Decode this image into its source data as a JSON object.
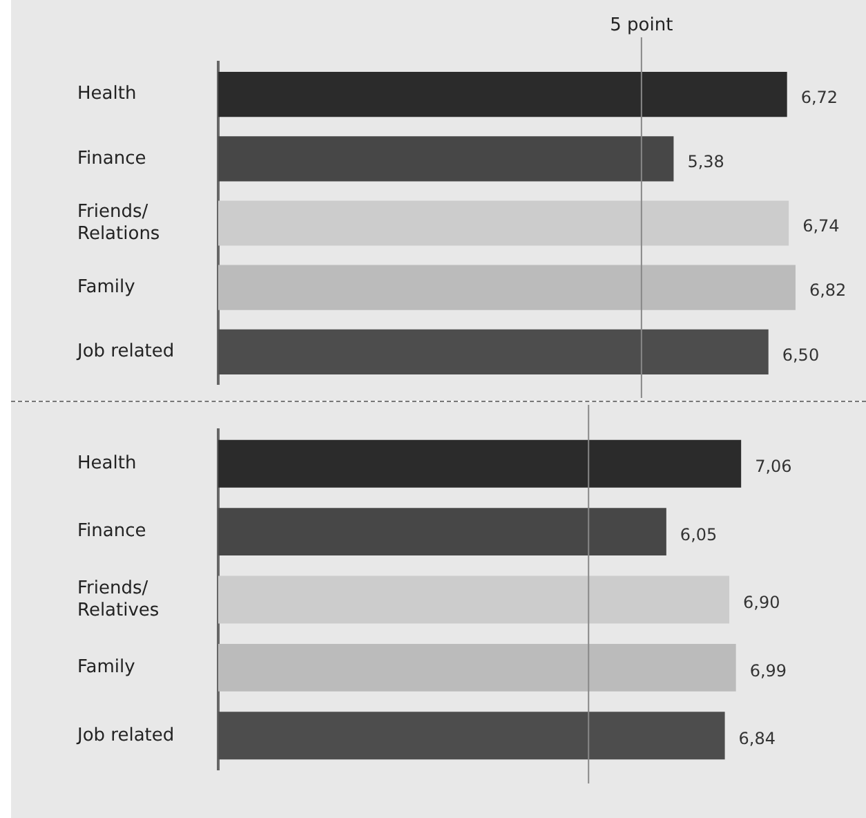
{
  "chart_data": [
    {
      "type": "bar",
      "orientation": "horizontal",
      "categories": [
        "Health",
        "Finance",
        "Friends/ Relations",
        "Family",
        "Job related"
      ],
      "values": [
        6.72,
        5.38,
        6.74,
        6.82,
        6.5
      ],
      "colors": [
        "#2b2b2b",
        "#474747",
        "#cccccc",
        "#bbbbbb",
        "#4d4d4d"
      ],
      "value_labels": [
        "6,72",
        "5,38",
        "6,74",
        "6,82",
        "6,50"
      ],
      "tick_labels": "y",
      "legend": false,
      "ref_lines": [
        {
          "axis": "x",
          "value": 5,
          "label": "5 point",
          "color": "#888888"
        }
      ]
    },
    {
      "type": "bar",
      "orientation": "horizontal",
      "categories": [
        "Health",
        "Finance",
        "Friends/ Relatives",
        "Family",
        "Job related"
      ],
      "values": [
        7.06,
        6.05,
        6.9,
        6.99,
        6.84
      ],
      "colors": [
        "#2b2b2b",
        "#474747",
        "#cccccc",
        "#bbbbbb",
        "#4d4d4d"
      ],
      "value_labels": [
        "7,06",
        "6,05",
        "6,90",
        "6,99",
        "6,84"
      ],
      "tick_labels": "y",
      "legend": false,
      "ref_lines": [
        {
          "axis": "x",
          "value": 5,
          "label": null,
          "color": "#888888"
        }
      ]
    }
  ]
}
